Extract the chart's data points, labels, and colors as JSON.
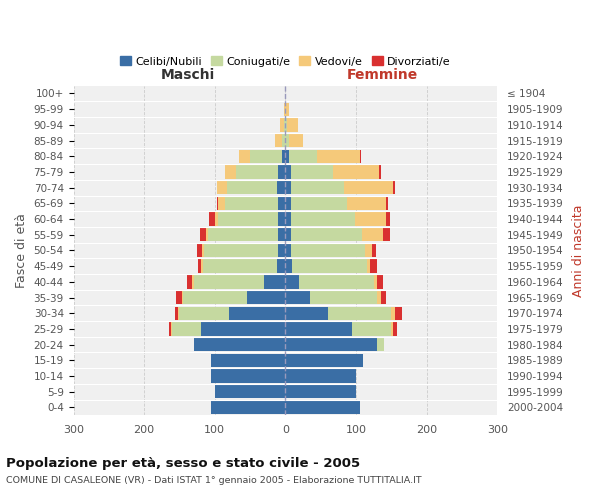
{
  "age_groups": [
    "0-4",
    "5-9",
    "10-14",
    "15-19",
    "20-24",
    "25-29",
    "30-34",
    "35-39",
    "40-44",
    "45-49",
    "50-54",
    "55-59",
    "60-64",
    "65-69",
    "70-74",
    "75-79",
    "80-84",
    "85-89",
    "90-94",
    "95-99",
    "100+"
  ],
  "birth_years": [
    "2000-2004",
    "1995-1999",
    "1990-1994",
    "1985-1989",
    "1980-1984",
    "1975-1979",
    "1970-1974",
    "1965-1969",
    "1960-1964",
    "1955-1959",
    "1950-1954",
    "1945-1949",
    "1940-1944",
    "1935-1939",
    "1930-1934",
    "1925-1929",
    "1920-1924",
    "1915-1919",
    "1910-1914",
    "1905-1909",
    "≤ 1904"
  ],
  "male": {
    "celibi": [
      105,
      100,
      105,
      105,
      130,
      120,
      80,
      55,
      30,
      12,
      10,
      10,
      10,
      10,
      12,
      10,
      5,
      0,
      0,
      0,
      0
    ],
    "coniugati": [
      0,
      0,
      0,
      0,
      0,
      40,
      70,
      90,
      100,
      105,
      105,
      100,
      85,
      75,
      70,
      60,
      45,
      5,
      2,
      0,
      0
    ],
    "vedovi": [
      0,
      0,
      0,
      0,
      0,
      2,
      2,
      2,
      2,
      2,
      3,
      3,
      5,
      10,
      15,
      15,
      15,
      10,
      5,
      2,
      0
    ],
    "divorziati": [
      0,
      0,
      0,
      0,
      0,
      3,
      5,
      8,
      8,
      5,
      7,
      8,
      8,
      2,
      0,
      0,
      0,
      0,
      0,
      0,
      0
    ]
  },
  "female": {
    "nubili": [
      105,
      100,
      100,
      110,
      130,
      95,
      60,
      35,
      20,
      10,
      8,
      8,
      8,
      8,
      8,
      8,
      5,
      0,
      0,
      0,
      0
    ],
    "coniugate": [
      0,
      0,
      0,
      0,
      10,
      55,
      90,
      95,
      105,
      105,
      105,
      100,
      90,
      80,
      75,
      60,
      40,
      5,
      3,
      0,
      0
    ],
    "vedove": [
      0,
      0,
      0,
      0,
      0,
      3,
      5,
      5,
      5,
      5,
      10,
      30,
      45,
      55,
      70,
      65,
      60,
      20,
      15,
      5,
      0
    ],
    "divorziate": [
      0,
      0,
      0,
      0,
      0,
      5,
      10,
      8,
      8,
      10,
      5,
      10,
      5,
      2,
      2,
      2,
      2,
      0,
      0,
      0,
      0
    ]
  },
  "colors": {
    "celibi": "#3a6ea5",
    "coniugati": "#c5d9a0",
    "vedovi": "#f5c97a",
    "divorziati": "#d93030"
  },
  "title": "Popolazione per età, sesso e stato civile - 2005",
  "subtitle": "COMUNE DI CASALEONE (VR) - Dati ISTAT 1° gennaio 2005 - Elaborazione TUTTITALIA.IT",
  "xlabel_left": "Maschi",
  "xlabel_right": "Femmine",
  "ylabel_left": "Fasce di età",
  "ylabel_right": "Anni di nascita",
  "xlim": 300,
  "bg_color": "#f0f0f0",
  "legend_labels": [
    "Celibi/Nubili",
    "Coniugati/e",
    "Vedovi/e",
    "Divorziati/e"
  ]
}
